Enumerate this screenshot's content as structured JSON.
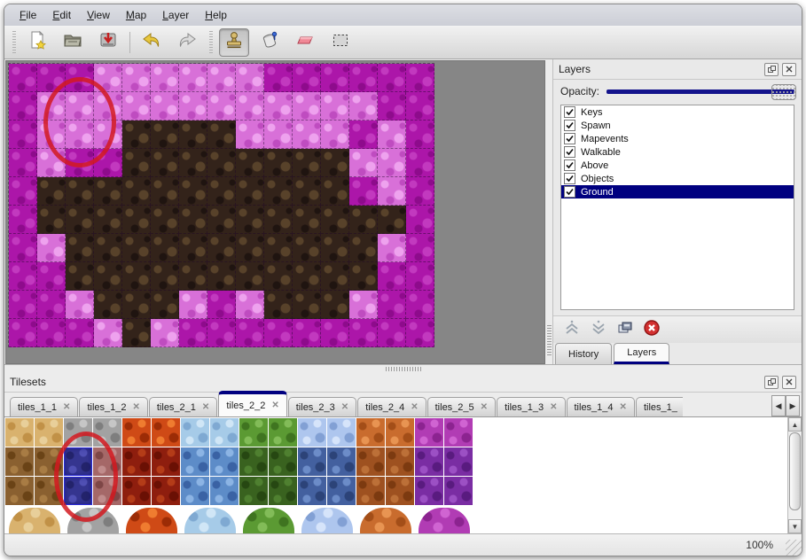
{
  "menu": {
    "items": [
      "File",
      "Edit",
      "View",
      "Map",
      "Layer",
      "Help"
    ]
  },
  "toolbar": {
    "buttons": [
      {
        "name": "new",
        "active": false
      },
      {
        "name": "open",
        "active": false
      },
      {
        "name": "save",
        "active": false
      },
      {
        "name": "undo",
        "active": false
      },
      {
        "name": "redo",
        "active": false
      },
      {
        "name": "stamp",
        "active": true
      },
      {
        "name": "fill",
        "active": false
      },
      {
        "name": "eraser",
        "active": false
      },
      {
        "name": "select",
        "active": false
      }
    ]
  },
  "map": {
    "tile_size": 32,
    "columns": 15,
    "rows": [
      "mmmppppppmmmmmm",
      "mppppppppppppmm",
      "mpppbbbbppppmpm",
      "mpmmbbbbbbbbppm",
      "mbbbbbbbbbbbmpm",
      "mbbbbbbbbbbbbbm",
      "mpbbbbbbbbbbbpm",
      "mmbbbbbbbbbbbmm",
      "mmpbbbpmpbbbpmm",
      "mmmpbpmmmmmmmmm"
    ],
    "palette": {
      "m": [
        "#ac16a9",
        "#c239bf",
        "#8e0b8c"
      ],
      "p": [
        "#d870d8",
        "#eea2ee",
        "#bf4cc0"
      ],
      "b": [
        "#33231a",
        "#58422a",
        "#1f1410"
      ]
    },
    "legend": {
      "m": "dark-magenta-tile",
      "p": "light-pink-tile",
      "b": "brown-rock-tile"
    },
    "annotation": "red-ellipse-highlight"
  },
  "layers_panel": {
    "title": "Layers",
    "opacity_label": "Opacity:",
    "layers": [
      {
        "name": "Keys",
        "visible": true,
        "selected": false
      },
      {
        "name": "Spawn",
        "visible": true,
        "selected": false
      },
      {
        "name": "Mapevents",
        "visible": true,
        "selected": false
      },
      {
        "name": "Walkable",
        "visible": true,
        "selected": false
      },
      {
        "name": "Above",
        "visible": true,
        "selected": false
      },
      {
        "name": "Objects",
        "visible": true,
        "selected": false
      },
      {
        "name": "Ground",
        "visible": true,
        "selected": true
      }
    ],
    "buttons": [
      "raise-layer",
      "lower-layer",
      "duplicate-layer",
      "delete-layer"
    ],
    "tabs": [
      {
        "label": "History",
        "active": false
      },
      {
        "label": "Layers",
        "active": true
      }
    ]
  },
  "tilesets_panel": {
    "title": "Tilesets",
    "tabs": [
      {
        "label": "tiles_1_1",
        "active": false
      },
      {
        "label": "tiles_1_2",
        "active": false
      },
      {
        "label": "tiles_2_1",
        "active": false
      },
      {
        "label": "tiles_2_2",
        "active": true
      },
      {
        "label": "tiles_2_3",
        "active": false
      },
      {
        "label": "tiles_2_4",
        "active": false
      },
      {
        "label": "tiles_2_5",
        "active": false
      },
      {
        "label": "tiles_1_3",
        "active": false
      },
      {
        "label": "tiles_1_4",
        "active": false
      },
      {
        "label": "tiles_1_",
        "active": false,
        "truncated": true
      }
    ],
    "grid": {
      "row0": [
        "tan",
        "tan",
        "stone",
        "stone",
        "lava",
        "lava",
        "ice",
        "ice",
        "vine",
        "vine",
        "crystal",
        "crystal",
        "orangerock",
        "orangerock",
        "cell",
        "cell"
      ],
      "row1": [
        "bark",
        "bark",
        "blue",
        "mauve",
        "flame",
        "flame",
        "icicle",
        "icicle",
        "darkvine",
        "darkvine",
        "darkcrystal",
        "darkcrystal",
        "darkorange",
        "darkorange",
        "darkcell",
        "darkcell"
      ],
      "row2": [
        "bark",
        "bark",
        "blue",
        "mauve",
        "flame",
        "flame",
        "icicle",
        "icicle",
        "darkvine",
        "darkvine",
        "darkcrystal",
        "darkcrystal",
        "darkorange",
        "darkorange",
        "darkcell",
        "darkcell"
      ],
      "blobs": [
        "tan",
        "stone",
        "lava",
        "ice",
        "vine",
        "crystal",
        "orangerock",
        "cell"
      ],
      "selected_cells": [
        [
          1,
          2
        ],
        [
          2,
          2
        ]
      ],
      "annotation": "red-ellipse-highlight"
    },
    "textures": {
      "tan": [
        "#d9b26e",
        "#e8cf9a",
        "#c19147"
      ],
      "bark": [
        "#8a6030",
        "#a87c44",
        "#6a4316"
      ],
      "stone": [
        "#a2a2a2",
        "#c6c6c6",
        "#7e7e7e"
      ],
      "blue": [
        "#35358f",
        "#5050b4",
        "#23236b"
      ],
      "mauve": [
        "#a56868",
        "#c08c8c",
        "#7e4646"
      ],
      "lava": [
        "#cf4a16",
        "#ef7c30",
        "#9c2c06"
      ],
      "flame": [
        "#8e1e0e",
        "#b43c18",
        "#6a1004"
      ],
      "ice": [
        "#a6cbe8",
        "#d0e6f6",
        "#7fa9d2"
      ],
      "icicle": [
        "#5d8cc8",
        "#8cb4e4",
        "#3a62a4"
      ],
      "vine": [
        "#5b9a33",
        "#82bc58",
        "#3f7420"
      ],
      "darkvine": [
        "#39621f",
        "#4f8030",
        "#264712"
      ],
      "crystal": [
        "#aec6ee",
        "#d6e4fa",
        "#82a0d4"
      ],
      "darkcrystal": [
        "#43609f",
        "#6c8cc8",
        "#2c4378"
      ],
      "orangerock": [
        "#c96c2e",
        "#e89452",
        "#a34e18"
      ],
      "darkorange": [
        "#9e5120",
        "#bc7038",
        "#7c3a10"
      ],
      "cell": [
        "#b13cb4",
        "#d064d2",
        "#8c2390"
      ],
      "darkcell": [
        "#7a2da3",
        "#9c50c4",
        "#591b7f"
      ]
    }
  },
  "status_bar": {
    "zoom_level": "100%"
  },
  "colors": {
    "selection": "#000080",
    "annotation_red": "#d21920",
    "canvas_gray": "#868686"
  }
}
